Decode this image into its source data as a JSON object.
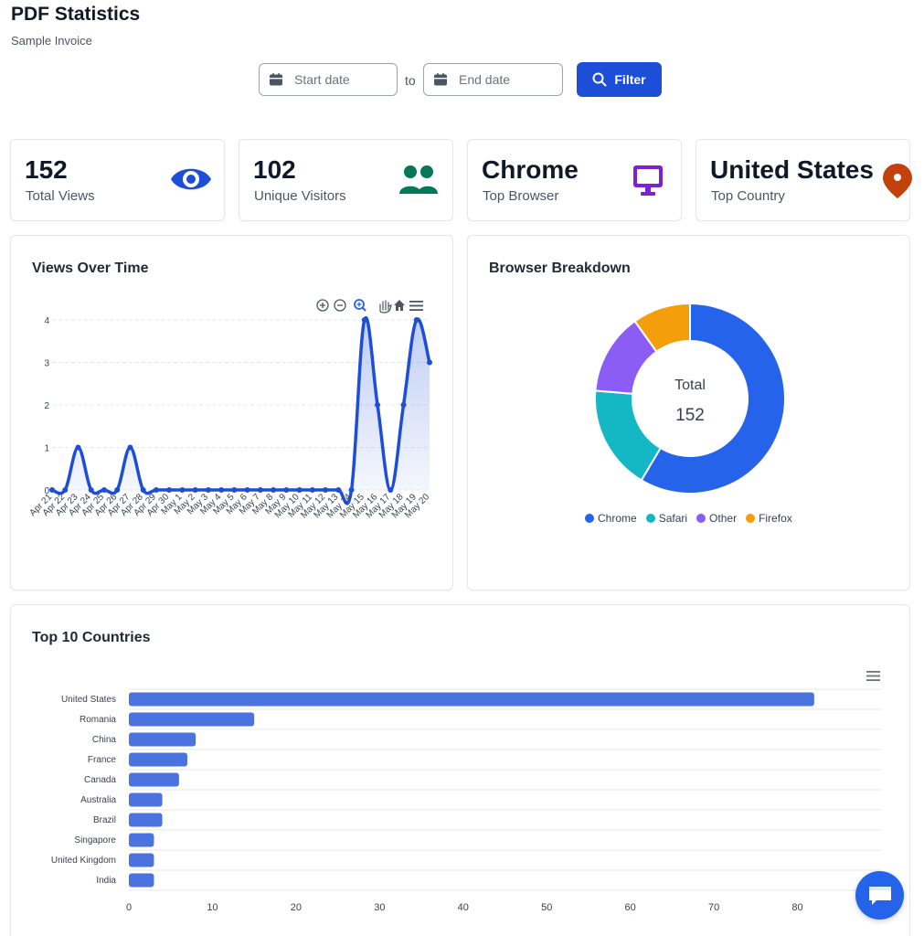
{
  "header": {
    "title": "PDF Statistics",
    "subtitle": "Sample Invoice"
  },
  "filters": {
    "start_placeholder": "Start date",
    "end_placeholder": "End date",
    "to_label": "to",
    "filter_label": "Filter"
  },
  "stats": [
    {
      "value": "152",
      "label": "Total Views",
      "icon": "eye-icon",
      "color": "#1d4ed8"
    },
    {
      "value": "102",
      "label": "Unique Visitors",
      "icon": "users-icon",
      "color": "#047857"
    },
    {
      "value": "Chrome",
      "label": "Top Browser",
      "icon": "monitor-icon",
      "color": "#7e22ce"
    },
    {
      "value": "United States",
      "label": "Top Country",
      "icon": "map-pin-icon",
      "color": "#c2410c"
    }
  ],
  "views_chart": {
    "title": "Views Over Time",
    "toolbar": [
      "zoom-in-icon",
      "zoom-out-icon",
      "selection-zoom-icon",
      "pan-icon",
      "home-icon",
      "menu-icon"
    ]
  },
  "browser_chart": {
    "title": "Browser Breakdown",
    "total_label": "Total",
    "total_value": "152"
  },
  "countries_chart": {
    "title": "Top 10 Countries"
  },
  "chart_data": [
    {
      "type": "area",
      "title": "Views Over Time",
      "categories": [
        "Apr 21",
        "Apr 22",
        "Apr 23",
        "Apr 24",
        "Apr 25",
        "Apr 26",
        "Apr 27",
        "Apr 28",
        "Apr 29",
        "Apr 30",
        "May 1",
        "May 2",
        "May 3",
        "May 4",
        "May 5",
        "May 6",
        "May 7",
        "May 8",
        "May 9",
        "May 10",
        "May 11",
        "May 12",
        "May 13",
        "May 14",
        "May 15",
        "May 16",
        "May 17",
        "May 18",
        "May 19",
        "May 20"
      ],
      "values": [
        0,
        0,
        1,
        0,
        0,
        0,
        1,
        0,
        0,
        0,
        0,
        0,
        0,
        0,
        0,
        0,
        0,
        0,
        0,
        0,
        0,
        0,
        0,
        0,
        4,
        2,
        0,
        2,
        4,
        3
      ],
      "yticks": [
        "0",
        "1",
        "2",
        "3",
        "4"
      ],
      "ylim": [
        0,
        4
      ],
      "color": "#1d4ed8",
      "grid": true
    },
    {
      "type": "pie",
      "title": "Browser Breakdown",
      "labels": [
        "Chrome",
        "Safari",
        "Other",
        "Firefox"
      ],
      "values": [
        89,
        27,
        21,
        15
      ],
      "colors": [
        "#2563eb",
        "#14b8c4",
        "#8b5cf6",
        "#f59e0b"
      ],
      "legend": "bottom"
    },
    {
      "type": "bar",
      "title": "Top 10 Countries",
      "categories": [
        "United States",
        "Romania",
        "China",
        "France",
        "Canada",
        "Australia",
        "Brazil",
        "Singapore",
        "United Kingdom",
        "India"
      ],
      "values": [
        82,
        15,
        8,
        7,
        6,
        4,
        4,
        3,
        3,
        3
      ],
      "xticks": [
        "0",
        "10",
        "20",
        "30",
        "40",
        "50",
        "60",
        "70",
        "80"
      ],
      "xlim": [
        0,
        90
      ],
      "color": "#4a73e0",
      "orientation": "horizontal"
    }
  ]
}
